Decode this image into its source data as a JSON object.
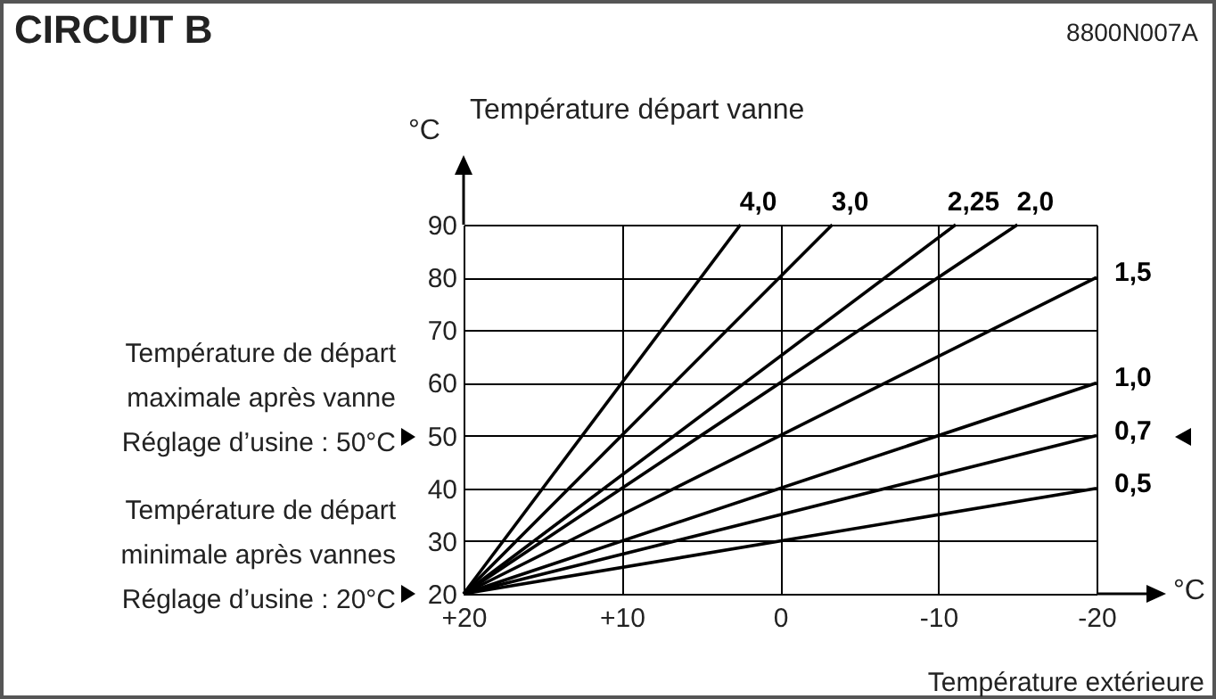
{
  "chart_data": {
    "type": "line",
    "title": "CIRCUIT B",
    "xlabel": "Température extérieure",
    "ylabel": "Température départ vanne",
    "annotations": [
      "8800N007A",
      "°C",
      "°C",
      "Température de départ\nmaximale après vanne\nRéglage d’usine : 50°C",
      "Température de départ\nminimale après vannes\nRéglage d’usine : 20°C"
    ],
    "xlim": [
      20,
      -20
    ],
    "xticks": [
      {
        "value": 20,
        "label": "+20"
      },
      {
        "value": 10,
        "label": "+10"
      },
      0,
      -10,
      -20
    ],
    "ylim": [
      20,
      90
    ],
    "yticks": [
      20,
      30,
      40,
      50,
      60,
      70,
      80,
      90
    ],
    "grid": true,
    "series": [
      {
        "name": "4,0",
        "color": "#000000",
        "x": [
          20,
          2.5
        ],
        "values": [
          20,
          90
        ]
      },
      {
        "name": "3,0",
        "color": "#000000",
        "x": [
          20,
          -3.3
        ],
        "values": [
          20,
          90
        ]
      },
      {
        "name": "2,25",
        "color": "#000000",
        "x": [
          20,
          -11.1
        ],
        "values": [
          20,
          90
        ]
      },
      {
        "name": "2,0",
        "color": "#000000",
        "x": [
          20,
          -15
        ],
        "values": [
          20,
          90
        ]
      },
      {
        "name": "1,5",
        "color": "#000000",
        "x": [
          20,
          -20
        ],
        "values": [
          20,
          80
        ]
      },
      {
        "name": "1,0",
        "color": "#000000",
        "x": [
          20,
          -20
        ],
        "values": [
          20,
          60
        ]
      },
      {
        "name": "0,7",
        "color": "#000000",
        "x": [
          20,
          -20
        ],
        "values": [
          20,
          50
        ]
      },
      {
        "name": "0,5",
        "color": "#000000",
        "x": [
          20,
          -20
        ],
        "values": [
          20,
          40
        ]
      }
    ]
  }
}
